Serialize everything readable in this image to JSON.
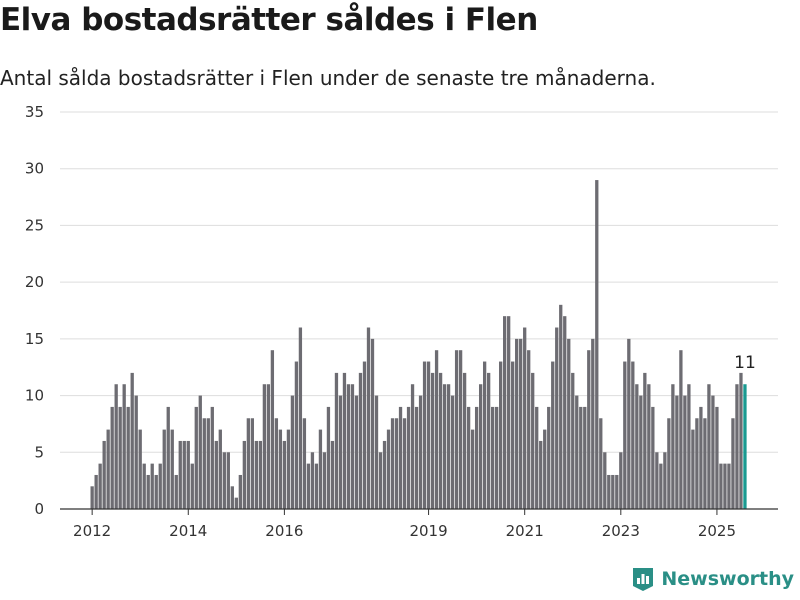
{
  "title": "Elva bostadsrätter såldes i Flen",
  "subtitle": "Antal sålda bostadsrätter i Flen under de senaste tre månaderna.",
  "brand": "Newsworthy",
  "colors": {
    "bar": "#6d6c72",
    "highlight": "#1a9a91",
    "grid": "#dddddd",
    "brand": "#2a8f86"
  },
  "chart_data": {
    "type": "bar",
    "title": "Elva bostadsrätter såldes i Flen",
    "subtitle": "Antal sålda bostadsrätter i Flen under de senaste tre månaderna.",
    "xlabel": "",
    "ylabel": "",
    "ylim": [
      0,
      35
    ],
    "yticks": [
      0,
      5,
      10,
      15,
      20,
      25,
      30,
      35
    ],
    "x_start": "2012-01",
    "xticks": [
      {
        "label": "2012",
        "date": "2012-01"
      },
      {
        "label": "2014",
        "date": "2014-01"
      },
      {
        "label": "2016",
        "date": "2016-01"
      },
      {
        "label": "2019",
        "date": "2019-01"
      },
      {
        "label": "2021",
        "date": "2021-01"
      },
      {
        "label": "2023",
        "date": "2023-01"
      },
      {
        "label": "2025",
        "date": "2025-01"
      }
    ],
    "grid": true,
    "highlight_label": "11",
    "values": [
      2,
      3,
      4,
      6,
      7,
      9,
      11,
      9,
      11,
      9,
      12,
      10,
      7,
      4,
      3,
      4,
      3,
      4,
      7,
      9,
      7,
      3,
      6,
      6,
      6,
      4,
      9,
      10,
      8,
      8,
      9,
      6,
      7,
      5,
      5,
      2,
      1,
      3,
      6,
      8,
      8,
      6,
      6,
      11,
      11,
      14,
      8,
      7,
      6,
      7,
      10,
      13,
      16,
      8,
      4,
      5,
      4,
      7,
      5,
      9,
      6,
      12,
      10,
      12,
      11,
      11,
      10,
      12,
      13,
      16,
      15,
      10,
      5,
      6,
      7,
      8,
      8,
      9,
      8,
      9,
      11,
      9,
      10,
      13,
      13,
      12,
      14,
      12,
      11,
      11,
      10,
      14,
      14,
      12,
      9,
      7,
      9,
      11,
      13,
      12,
      9,
      9,
      13,
      17,
      17,
      13,
      15,
      15,
      16,
      14,
      12,
      9,
      6,
      7,
      9,
      13,
      16,
      18,
      17,
      15,
      12,
      10,
      9,
      9,
      14,
      15,
      29,
      8,
      5,
      3,
      3,
      3,
      5,
      13,
      15,
      13,
      11,
      10,
      12,
      11,
      9,
      5,
      4,
      5,
      8,
      11,
      10,
      14,
      10,
      11,
      7,
      8,
      9,
      8,
      11,
      10,
      9,
      4,
      4,
      4,
      8,
      11,
      12,
      11
    ]
  }
}
